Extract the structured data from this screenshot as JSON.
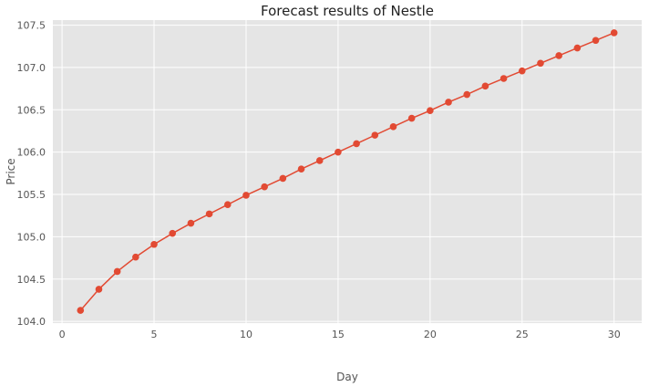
{
  "chart_data": {
    "type": "line",
    "title": "Forecast results of Nestle",
    "xlabel": "Day",
    "ylabel": "Price",
    "xlim": [
      -0.5,
      31.5
    ],
    "ylim": [
      103.98,
      107.56
    ],
    "xticks": [
      0,
      5,
      10,
      15,
      20,
      25,
      30
    ],
    "yticks": [
      104.0,
      104.5,
      105.0,
      105.5,
      106.0,
      106.5,
      107.0,
      107.5
    ],
    "grid": true,
    "legend": "none",
    "colors": {
      "line": "#E24A33",
      "plot_bg": "#E5E5E5",
      "grid": "#FFFFFF"
    },
    "series": [
      {
        "x": [
          1,
          2,
          3,
          4,
          5,
          6,
          7,
          8,
          9,
          10,
          11,
          12,
          13,
          14,
          15,
          16,
          17,
          18,
          19,
          20,
          21,
          22,
          23,
          24,
          25,
          26,
          27,
          28,
          29,
          30
        ],
        "values": [
          104.13,
          104.38,
          104.59,
          104.76,
          104.91,
          105.04,
          105.16,
          105.27,
          105.38,
          105.49,
          105.59,
          105.69,
          105.8,
          105.9,
          106.0,
          106.1,
          106.2,
          106.3,
          106.4,
          106.49,
          106.59,
          106.68,
          106.78,
          106.87,
          106.96,
          107.05,
          107.14,
          107.23,
          107.32,
          107.41
        ]
      }
    ]
  }
}
